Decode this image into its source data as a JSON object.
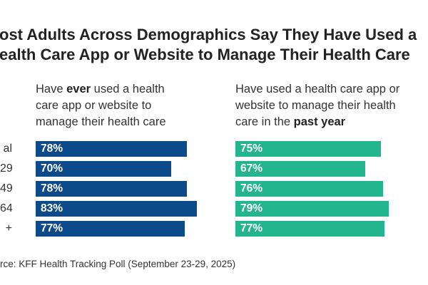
{
  "title": [
    "ost Adults Across Demographics Say They Have Used a",
    "ealth Care App or Website to Manage Their Health Care"
  ],
  "source": "rce: KFF Health Tracking Poll (September 23-29, 2025)",
  "chart_data": [
    {
      "type": "bar",
      "title": [
        "Have ",
        "ever",
        " used a health care app or website to manage their health care"
      ],
      "categories": [
        "al",
        "29",
        "49",
        "64",
        "+"
      ],
      "values": [
        78,
        70,
        78,
        83,
        77
      ],
      "value_labels": [
        "78%",
        "70%",
        "78%",
        "83%",
        "77%"
      ],
      "color": "#0d4a8a",
      "xlim": [
        0,
        100
      ]
    },
    {
      "type": "bar",
      "title": [
        "Have used a health care app or website to manage their health care in the ",
        "past year",
        ""
      ],
      "values": [
        75,
        67,
        76,
        79,
        77
      ],
      "value_labels": [
        "75%",
        "67%",
        "76%",
        "79%",
        "77%"
      ],
      "color": "#22b58e",
      "xlim": [
        0,
        100
      ]
    }
  ]
}
